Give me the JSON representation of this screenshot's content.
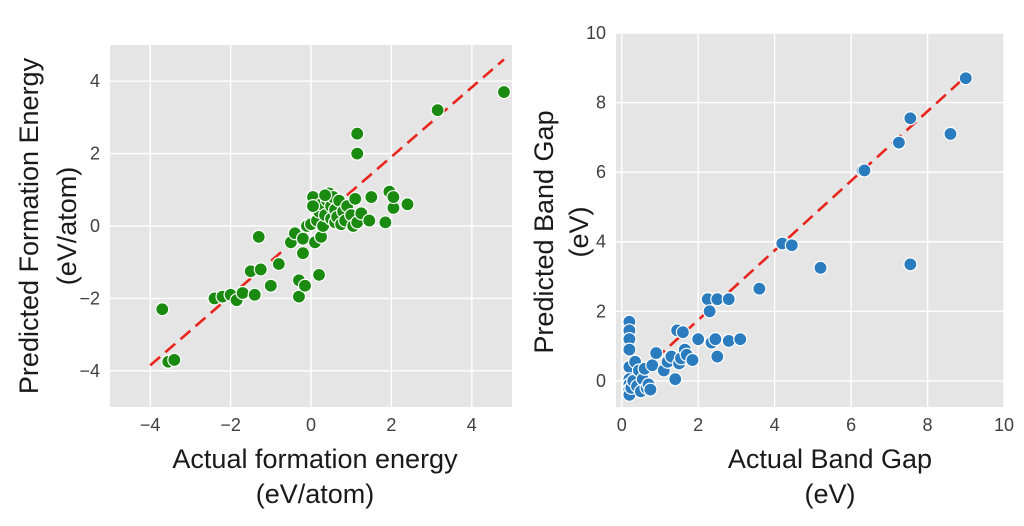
{
  "chart_data": [
    {
      "type": "scatter",
      "xlabel_line1": "Actual formation energy",
      "xlabel_line2": "(eV/atom)",
      "ylabel_line1": "Predicted Formation Energy",
      "ylabel_line2": "(eV/atom)",
      "xlim": [
        -5,
        5
      ],
      "ylim": [
        -5,
        5
      ],
      "xticks": [
        "−4",
        "−2",
        "0",
        "2",
        "4"
      ],
      "yticks": [
        "−4",
        "−2",
        "0",
        "2",
        "4"
      ],
      "xtick_values": [
        -4,
        -2,
        0,
        2,
        4
      ],
      "ytick_values": [
        -4,
        -2,
        0,
        2,
        4
      ],
      "grid": true,
      "point_color": "#1a8a10",
      "line_color": "#e8251c",
      "plot_bg": "#e5e5e5",
      "fit_line": {
        "x": [
          -4,
          4.8
        ],
        "y": [
          -3.85,
          4.6
        ]
      },
      "points": [
        {
          "x": -3.7,
          "y": -2.3
        },
        {
          "x": -3.55,
          "y": -3.75
        },
        {
          "x": -3.4,
          "y": -3.7
        },
        {
          "x": -2.4,
          "y": -2.0
        },
        {
          "x": -2.2,
          "y": -1.95
        },
        {
          "x": -2.0,
          "y": -1.9
        },
        {
          "x": -1.85,
          "y": -2.05
        },
        {
          "x": -1.7,
          "y": -1.85
        },
        {
          "x": -1.5,
          "y": -1.25
        },
        {
          "x": -1.4,
          "y": -1.9
        },
        {
          "x": -1.3,
          "y": -0.3
        },
        {
          "x": -1.25,
          "y": -1.2
        },
        {
          "x": -1.0,
          "y": -1.65
        },
        {
          "x": -0.8,
          "y": -1.05
        },
        {
          "x": -0.5,
          "y": -0.45
        },
        {
          "x": -0.4,
          "y": -0.2
        },
        {
          "x": -0.3,
          "y": -1.5
        },
        {
          "x": -0.3,
          "y": -1.95
        },
        {
          "x": -0.2,
          "y": -0.75
        },
        {
          "x": -0.15,
          "y": -1.65
        },
        {
          "x": -0.2,
          "y": -0.35
        },
        {
          "x": -0.1,
          "y": 0.0
        },
        {
          "x": 0.0,
          "y": 0.05
        },
        {
          "x": 0.05,
          "y": 0.8
        },
        {
          "x": 0.1,
          "y": -0.45
        },
        {
          "x": 0.15,
          "y": 0.15
        },
        {
          "x": 0.2,
          "y": 0.4
        },
        {
          "x": 0.25,
          "y": 0.6
        },
        {
          "x": 0.25,
          "y": -0.3
        },
        {
          "x": 0.3,
          "y": 0.0
        },
        {
          "x": 0.35,
          "y": 0.3
        },
        {
          "x": 0.4,
          "y": 0.7
        },
        {
          "x": 0.45,
          "y": 0.9
        },
        {
          "x": 0.5,
          "y": 0.2
        },
        {
          "x": 0.5,
          "y": 0.55
        },
        {
          "x": 0.55,
          "y": 0.8
        },
        {
          "x": 0.6,
          "y": 0.1
        },
        {
          "x": 0.6,
          "y": 0.45
        },
        {
          "x": 0.65,
          "y": 0.25
        },
        {
          "x": 0.7,
          "y": 0.7
        },
        {
          "x": 0.75,
          "y": 0.05
        },
        {
          "x": 0.8,
          "y": 0.4
        },
        {
          "x": 0.85,
          "y": 0.15
        },
        {
          "x": 0.9,
          "y": 0.55
        },
        {
          "x": 1.0,
          "y": 0.3
        },
        {
          "x": 1.05,
          "y": 0.0
        },
        {
          "x": 1.1,
          "y": 0.75
        },
        {
          "x": 1.15,
          "y": 2.55
        },
        {
          "x": 1.15,
          "y": 2.0
        },
        {
          "x": 1.15,
          "y": 0.1
        },
        {
          "x": 1.25,
          "y": 0.35
        },
        {
          "x": 0.2,
          "y": -1.35
        },
        {
          "x": 0.05,
          "y": 0.55
        },
        {
          "x": 0.35,
          "y": 0.85
        },
        {
          "x": 1.45,
          "y": 0.15
        },
        {
          "x": 1.5,
          "y": 0.8
        },
        {
          "x": 1.85,
          "y": 0.1
        },
        {
          "x": 1.95,
          "y": 0.95
        },
        {
          "x": 2.05,
          "y": 0.5
        },
        {
          "x": 2.05,
          "y": 0.8
        },
        {
          "x": 2.4,
          "y": 0.6
        },
        {
          "x": 3.15,
          "y": 3.2
        },
        {
          "x": 4.8,
          "y": 3.7
        }
      ]
    },
    {
      "type": "scatter",
      "xlabel_line1": "Actual Band Gap",
      "xlabel_line2": "(eV)",
      "ylabel_line1": "Predicted Band Gap",
      "ylabel_line2": "(eV)",
      "xlim": [
        -0.15,
        10
      ],
      "ylim": [
        -0.75,
        10
      ],
      "xticks": [
        "0",
        "2",
        "4",
        "6",
        "8",
        "10"
      ],
      "yticks": [
        "0",
        "2",
        "4",
        "6",
        "8",
        "10"
      ],
      "xtick_values": [
        0,
        2,
        4,
        6,
        8,
        10
      ],
      "ytick_values": [
        0,
        2,
        4,
        6,
        8,
        10
      ],
      "grid": true,
      "point_color": "#2a7cbf",
      "line_color": "#e8251c",
      "plot_bg": "#e5e5e5",
      "fit_line": {
        "x": [
          0.1,
          9.0
        ],
        "y": [
          -0.15,
          8.75
        ]
      },
      "points": [
        {
          "x": 0.2,
          "y": 1.7
        },
        {
          "x": 0.2,
          "y": 1.45
        },
        {
          "x": 0.2,
          "y": 1.2
        },
        {
          "x": 0.2,
          "y": 0.9
        },
        {
          "x": 0.2,
          "y": 0.4
        },
        {
          "x": 0.2,
          "y": 0.05
        },
        {
          "x": 0.2,
          "y": -0.1
        },
        {
          "x": 0.2,
          "y": -0.25
        },
        {
          "x": 0.2,
          "y": -0.4
        },
        {
          "x": 0.25,
          "y": -0.2
        },
        {
          "x": 0.3,
          "y": 0.0
        },
        {
          "x": 0.35,
          "y": 0.55
        },
        {
          "x": 0.4,
          "y": -0.15
        },
        {
          "x": 0.45,
          "y": 0.3
        },
        {
          "x": 0.5,
          "y": -0.3
        },
        {
          "x": 0.55,
          "y": 0.05
        },
        {
          "x": 0.6,
          "y": 0.35
        },
        {
          "x": 0.65,
          "y": -0.2
        },
        {
          "x": 0.7,
          "y": -0.1
        },
        {
          "x": 0.75,
          "y": -0.25
        },
        {
          "x": 0.8,
          "y": 0.45
        },
        {
          "x": 0.9,
          "y": 0.8
        },
        {
          "x": 1.1,
          "y": 0.3
        },
        {
          "x": 1.2,
          "y": 0.55
        },
        {
          "x": 1.3,
          "y": 0.7
        },
        {
          "x": 1.4,
          "y": 0.05
        },
        {
          "x": 1.45,
          "y": 1.45
        },
        {
          "x": 1.5,
          "y": 0.5
        },
        {
          "x": 1.55,
          "y": 0.65
        },
        {
          "x": 1.6,
          "y": 1.4
        },
        {
          "x": 1.65,
          "y": 0.9
        },
        {
          "x": 1.7,
          "y": 0.75
        },
        {
          "x": 1.85,
          "y": 0.6
        },
        {
          "x": 2.0,
          "y": 1.2
        },
        {
          "x": 2.25,
          "y": 2.35
        },
        {
          "x": 2.3,
          "y": 2.0
        },
        {
          "x": 2.35,
          "y": 1.1
        },
        {
          "x": 2.45,
          "y": 1.2
        },
        {
          "x": 2.5,
          "y": 0.7
        },
        {
          "x": 2.5,
          "y": 2.35
        },
        {
          "x": 2.8,
          "y": 2.35
        },
        {
          "x": 2.8,
          "y": 1.15
        },
        {
          "x": 3.1,
          "y": 1.2
        },
        {
          "x": 3.6,
          "y": 2.65
        },
        {
          "x": 4.2,
          "y": 3.95
        },
        {
          "x": 4.45,
          "y": 3.9
        },
        {
          "x": 5.2,
          "y": 3.25
        },
        {
          "x": 6.3,
          "y": 6.05
        },
        {
          "x": 6.35,
          "y": 6.05
        },
        {
          "x": 7.25,
          "y": 6.85
        },
        {
          "x": 7.55,
          "y": 7.55
        },
        {
          "x": 7.55,
          "y": 3.35
        },
        {
          "x": 8.6,
          "y": 7.1
        },
        {
          "x": 9.0,
          "y": 8.7
        }
      ]
    }
  ]
}
